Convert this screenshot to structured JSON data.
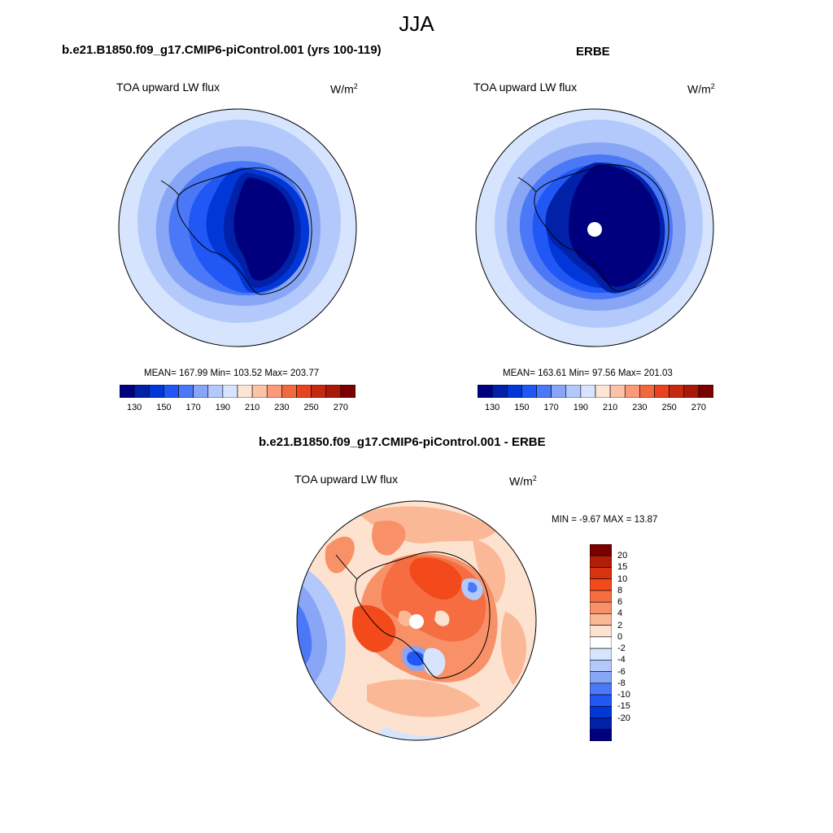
{
  "figure": {
    "title": "JJA"
  },
  "panel_model": {
    "title": "b.e21.B1850.f09_g17.CMIP6-piControl.001 (yrs 100-119)",
    "variable": "TOA upward LW flux",
    "units": "W/m",
    "units_exp": "2",
    "stats": "MEAN= 167.99  Min= 103.52  Max= 203.77"
  },
  "panel_obs": {
    "title": "ERBE",
    "variable": "TOA upward LW flux",
    "units": "W/m",
    "units_exp": "2",
    "stats": "MEAN= 163.61  Min=  97.56  Max= 201.03"
  },
  "panel_diff": {
    "title": "b.e21.B1850.f09_g17.CMIP6-piControl.001 - ERBE",
    "variable": "TOA upward LW flux",
    "units": "W/m",
    "units_exp": "2",
    "stats": "MIN =  -9.67 MAX =  13.87"
  },
  "colorbar_abs": {
    "colors": [
      "#00007f",
      "#0021a8",
      "#0037d6",
      "#2157f5",
      "#4a78f7",
      "#88a6f5",
      "#b3c9fb",
      "#d6e5fd",
      "#fde4d4",
      "#fcc3a8",
      "#fa9a78",
      "#f2693f",
      "#e8421e",
      "#c42a0f",
      "#a8190a",
      "#7a0000"
    ],
    "ticks": [
      "130",
      "150",
      "170",
      "190",
      "210",
      "230",
      "250",
      "270"
    ]
  },
  "colorbar_diff": {
    "colors": [
      "#7a0000",
      "#b01e0a",
      "#d8320f",
      "#f24a1a",
      "#f56d40",
      "#f89168",
      "#fbb896",
      "#fde2d0",
      "#ffffff",
      "#d6e5fd",
      "#b3c9fb",
      "#88a6f5",
      "#4a78f7",
      "#2157f5",
      "#0037d6",
      "#0021a8",
      "#00007f"
    ],
    "ticks": [
      "20",
      "15",
      "10",
      "8",
      "6",
      "4",
      "2",
      "0",
      "-2",
      "-4",
      "-6",
      "-8",
      "-10",
      "-15",
      "-20"
    ]
  },
  "chart_data": [
    {
      "type": "heatmap",
      "projection": "south-polar-stereographic",
      "title": "b.e21.B1850.f09_g17.CMIP6-piControl.001 (yrs 100-119)",
      "variable": "TOA upward LW flux",
      "units": "W/m^2",
      "mean": 167.99,
      "min": 103.52,
      "max": 203.77,
      "levels": [
        130,
        140,
        150,
        160,
        170,
        180,
        190,
        200,
        210,
        220,
        230,
        240,
        250,
        260,
        270
      ]
    },
    {
      "type": "heatmap",
      "projection": "south-polar-stereographic",
      "title": "ERBE",
      "variable": "TOA upward LW flux",
      "units": "W/m^2",
      "mean": 163.61,
      "min": 97.56,
      "max": 201.03,
      "levels": [
        130,
        140,
        150,
        160,
        170,
        180,
        190,
        200,
        210,
        220,
        230,
        240,
        250,
        260,
        270
      ]
    },
    {
      "type": "heatmap",
      "projection": "south-polar-stereographic",
      "title": "b.e21.B1850.f09_g17.CMIP6-piControl.001 - ERBE",
      "variable": "TOA upward LW flux",
      "units": "W/m^2",
      "min": -9.67,
      "max": 13.87,
      "levels": [
        -20,
        -15,
        -10,
        -8,
        -6,
        -4,
        -2,
        0,
        2,
        4,
        6,
        8,
        10,
        15,
        20
      ]
    }
  ]
}
